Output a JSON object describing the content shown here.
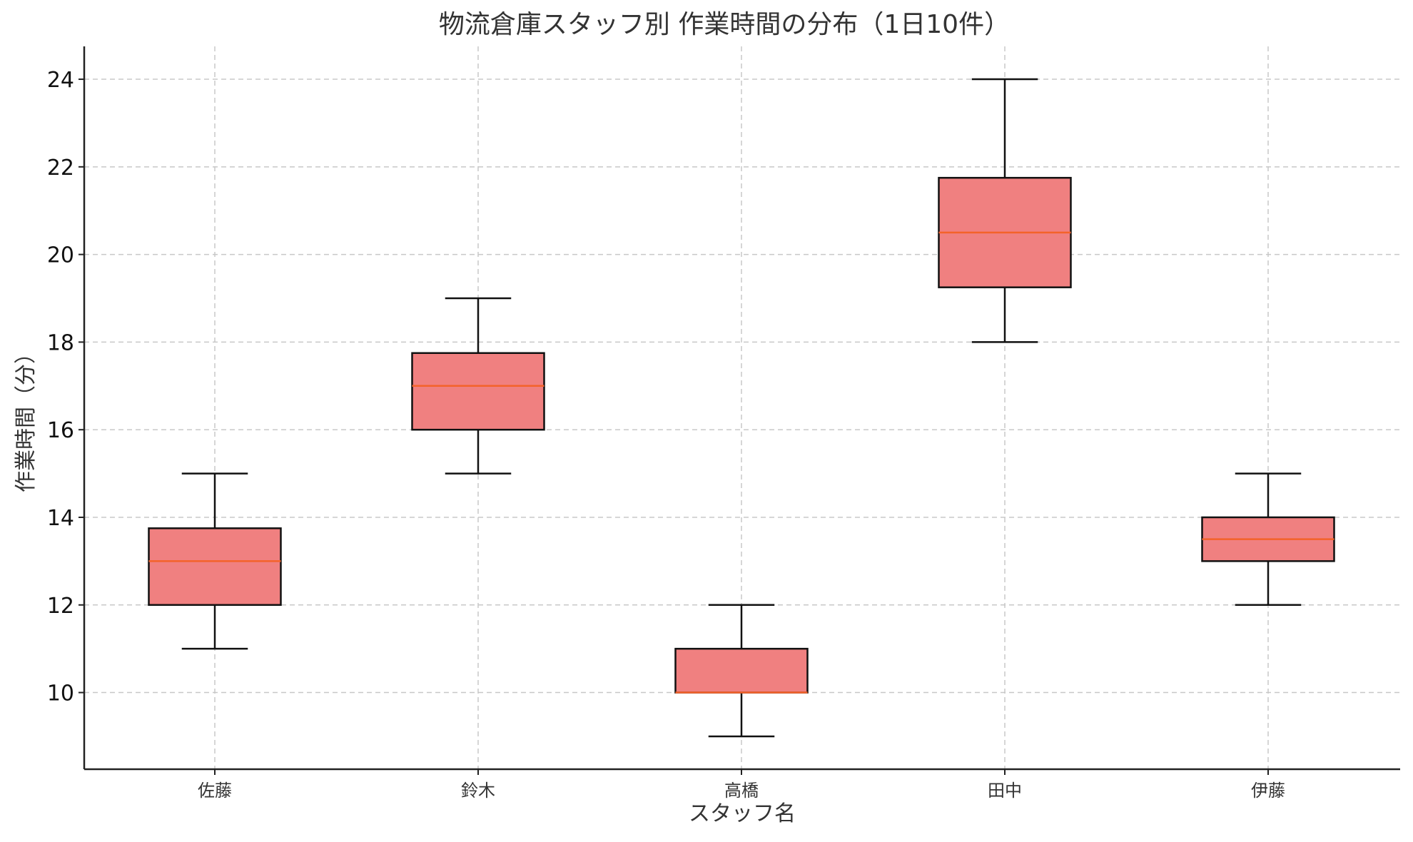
{
  "chart_data": {
    "type": "box",
    "title": "物流倉庫スタッフ別 作業時間の分布（1日10件）",
    "xlabel": "スタッフ名",
    "ylabel": "作業時間（分）",
    "categories": [
      "佐藤",
      "鈴木",
      "高橋",
      "田中",
      "伊藤"
    ],
    "boxes": [
      {
        "whisker_low": 11,
        "q1": 12,
        "median": 13,
        "q3": 13.75,
        "whisker_high": 15
      },
      {
        "whisker_low": 15,
        "q1": 16,
        "median": 17,
        "q3": 17.75,
        "whisker_high": 19
      },
      {
        "whisker_low": 9,
        "q1": 10,
        "median": 10,
        "q3": 11,
        "whisker_high": 12
      },
      {
        "whisker_low": 18,
        "q1": 19.25,
        "median": 20.5,
        "q3": 21.75,
        "whisker_high": 24
      },
      {
        "whisker_low": 12,
        "q1": 13,
        "median": 13.5,
        "q3": 14,
        "whisker_high": 15
      }
    ],
    "yticks": [
      10,
      12,
      14,
      16,
      18,
      20,
      22,
      24
    ],
    "ylim": [
      8.25,
      24.75
    ],
    "grid": true,
    "colors": {
      "box_fill": "#f08080",
      "median": "#f4632a",
      "edge": "#111111"
    }
  }
}
